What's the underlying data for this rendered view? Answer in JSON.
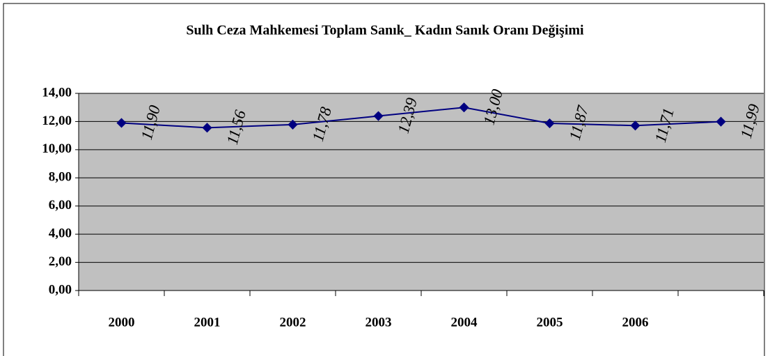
{
  "chart_data": {
    "type": "line",
    "title": "Sulh Ceza Mahkemesi Toplam Sanık_ Kadın Sanık Oranı Değişimi",
    "categories": [
      "2000",
      "2001",
      "2002",
      "2003",
      "2004",
      "2005",
      "2006",
      null
    ],
    "series": [
      {
        "name": null,
        "color": "#000080",
        "values": [
          11.9,
          11.56,
          11.78,
          12.39,
          13.0,
          11.87,
          11.71,
          11.99
        ],
        "value_labels": [
          "11,90",
          "11,56",
          "11,78",
          "12,39",
          "13,00",
          "11,87",
          "11,71",
          "11,99"
        ]
      }
    ],
    "ylim": [
      0,
      14
    ],
    "yticks": [
      {
        "value": 0,
        "label": "0,00"
      },
      {
        "value": 2,
        "label": "2,00"
      },
      {
        "value": 4,
        "label": "4,00"
      },
      {
        "value": 6,
        "label": "6,00"
      },
      {
        "value": 8,
        "label": "8,00"
      },
      {
        "value": 10,
        "label": "10,00"
      },
      {
        "value": 12,
        "label": "12,00"
      },
      {
        "value": 14,
        "label": "14,00"
      }
    ],
    "grid": true,
    "plot_background": "#c0c0c0"
  }
}
